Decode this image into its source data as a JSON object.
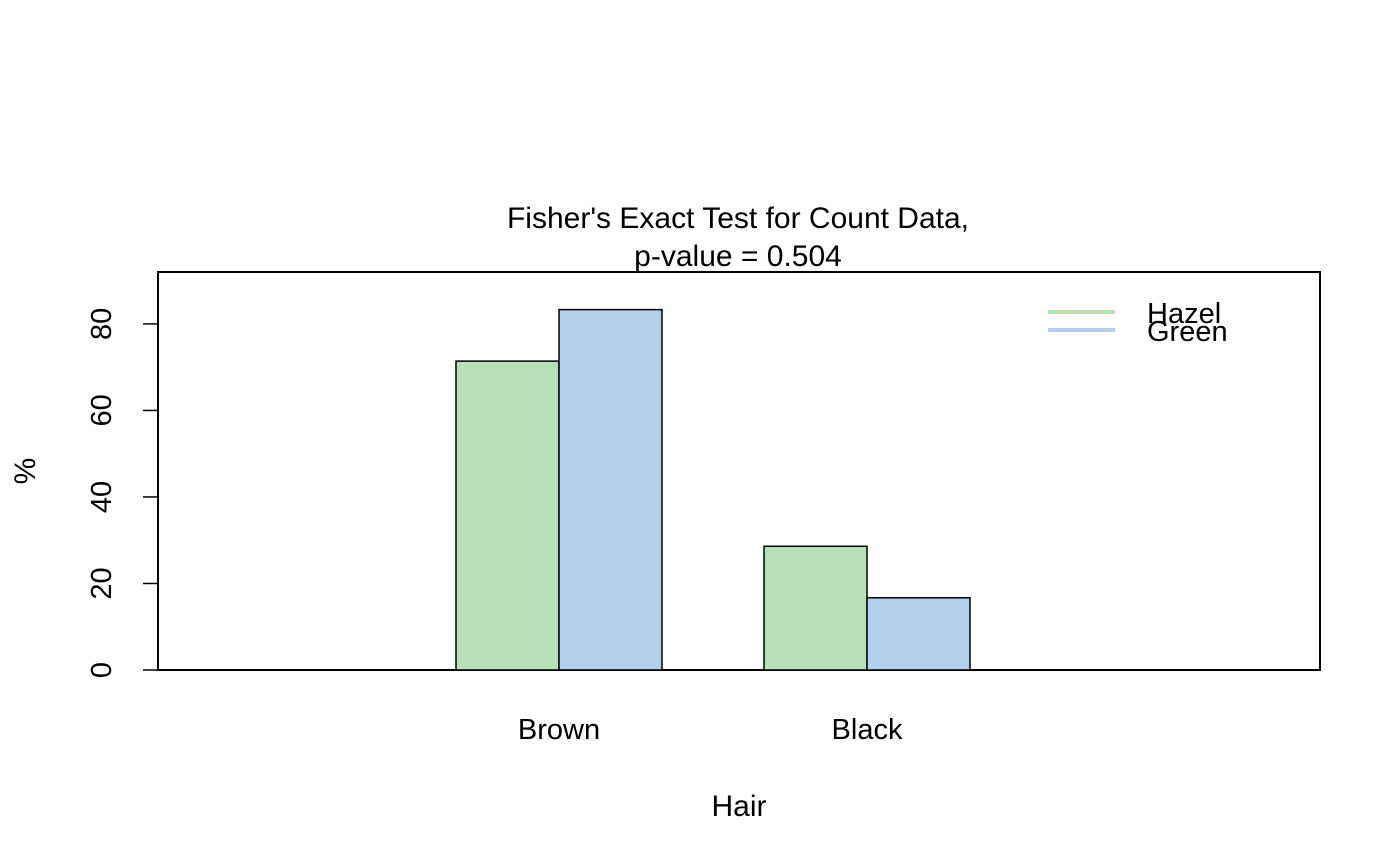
{
  "chart_data": {
    "type": "bar",
    "title": "Fisher's Exact Test for Count Data,",
    "subtitle": "p-value = 0.504",
    "xlabel": "Hair",
    "ylabel": "%",
    "categories": [
      "Brown",
      "Black"
    ],
    "series": [
      {
        "name": "Hazel",
        "values": [
          71.4,
          28.6
        ],
        "color": "#b8e0b8"
      },
      {
        "name": "Green",
        "values": [
          83.3,
          16.7
        ],
        "color": "#b3cfee"
      }
    ],
    "yticks": [
      0,
      20,
      40,
      60,
      80
    ],
    "ylim": [
      0,
      92
    ],
    "grid": false,
    "legend_position": "top-right"
  }
}
